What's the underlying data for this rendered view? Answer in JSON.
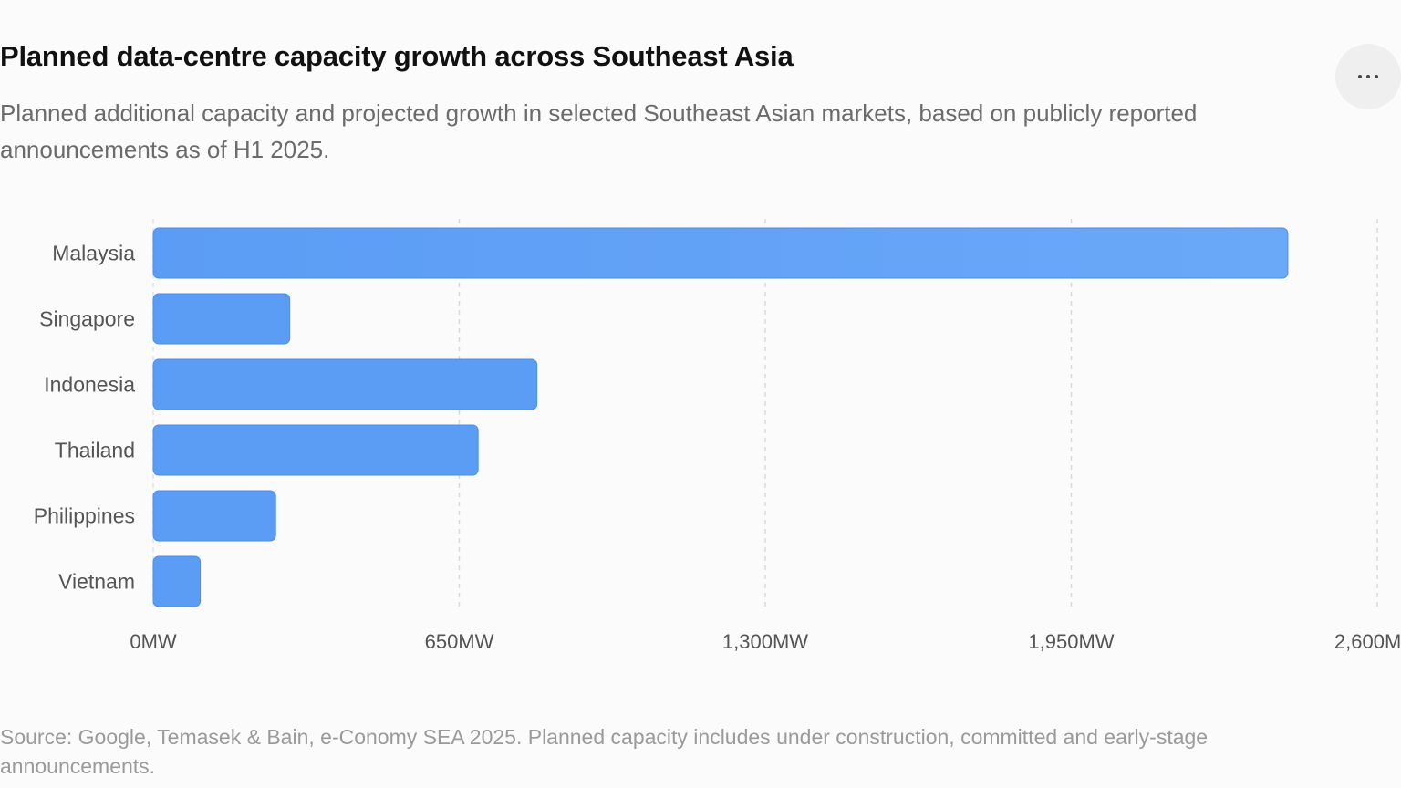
{
  "header": {
    "title": "Planned data-centre capacity growth across Southeast Asia",
    "subtitle": "Planned additional capacity and projected growth in selected Southeast Asian markets, based on publicly reported announcements as of H1 2025.",
    "more_icon": "more-horizontal-icon"
  },
  "footer": {
    "source": "Source: Google, Temasek & Bain, e-Conomy SEA 2025. Planned capacity includes under construction, committed and early-stage announcements."
  },
  "colors": {
    "bar_fill": "#5b9cf5",
    "bar_fill_top": "#6aa8f8",
    "bar_stroke": "#4a8eef",
    "grid": "#d9d9d9",
    "tick_text": "#555555",
    "category_text": "#555555"
  },
  "chart_data": {
    "type": "bar",
    "orientation": "horizontal",
    "categories": [
      "Malaysia",
      "Singapore",
      "Indonesia",
      "Thailand",
      "Philippines",
      "Vietnam"
    ],
    "series": [
      {
        "values": [
          2410,
          290,
          815,
          690,
          260,
          100
        ]
      }
    ],
    "xlim": [
      0,
      2600
    ],
    "x_ticks": [
      0,
      650,
      1300,
      1950,
      2600
    ],
    "x_tick_labels": [
      "0MW",
      "650MW",
      "1,300MW",
      "1,950MW",
      "2,600MW"
    ],
    "unit": "MW",
    "grid": "vertical dashed",
    "legend": "none"
  }
}
